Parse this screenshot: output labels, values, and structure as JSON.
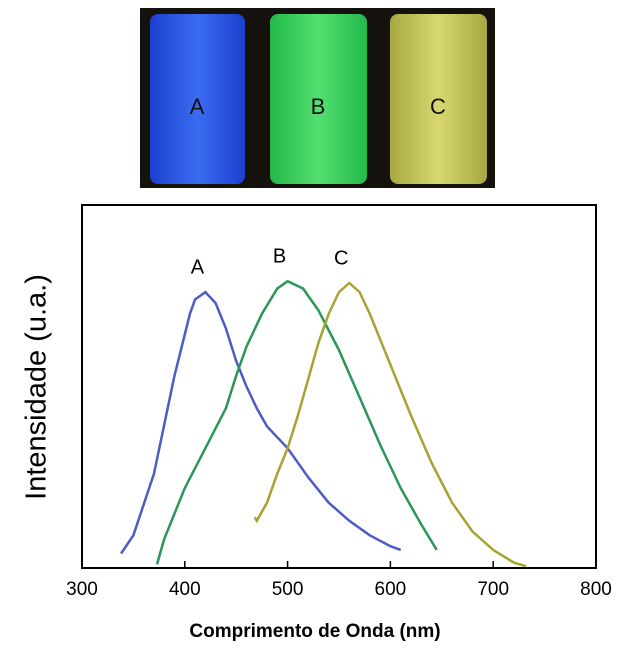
{
  "chart_data": {
    "type": "line",
    "xlabel": "Comprimento de Onda (nm)",
    "ylabel": "Intensidade (u.a.)",
    "xlim": [
      300,
      800
    ],
    "xticks": [
      300,
      400,
      500,
      600,
      700,
      800
    ],
    "ylim": [
      0,
      1
    ],
    "series": [
      {
        "name": "A",
        "color": "#4d5cc4",
        "x": [
          338,
          350,
          370,
          390,
          405,
          410,
          420,
          430,
          440,
          450,
          460,
          470,
          480,
          490,
          500,
          520,
          540,
          560,
          580,
          600,
          610
        ],
        "values": [
          0.04,
          0.09,
          0.26,
          0.53,
          0.7,
          0.74,
          0.76,
          0.73,
          0.66,
          0.57,
          0.5,
          0.44,
          0.39,
          0.36,
          0.33,
          0.25,
          0.18,
          0.13,
          0.09,
          0.06,
          0.05
        ]
      },
      {
        "name": "B",
        "color": "#2a9658",
        "x": [
          373,
          380,
          400,
          420,
          440,
          450,
          460,
          475,
          490,
          500,
          515,
          530,
          550,
          570,
          590,
          610,
          630,
          645
        ],
        "values": [
          0.01,
          0.08,
          0.22,
          0.33,
          0.44,
          0.53,
          0.61,
          0.7,
          0.77,
          0.79,
          0.77,
          0.71,
          0.6,
          0.47,
          0.34,
          0.22,
          0.12,
          0.05
        ]
      },
      {
        "name": "C",
        "color": "#a8a232",
        "x": [
          468,
          470,
          480,
          490,
          500,
          510,
          520,
          530,
          540,
          550,
          560,
          570,
          580,
          600,
          620,
          640,
          660,
          680,
          700,
          720,
          732
        ],
        "values": [
          0.14,
          0.13,
          0.18,
          0.26,
          0.33,
          0.42,
          0.52,
          0.62,
          0.7,
          0.76,
          0.785,
          0.76,
          0.7,
          0.56,
          0.42,
          0.29,
          0.18,
          0.1,
          0.05,
          0.015,
          0.005
        ]
      }
    ]
  }
}
